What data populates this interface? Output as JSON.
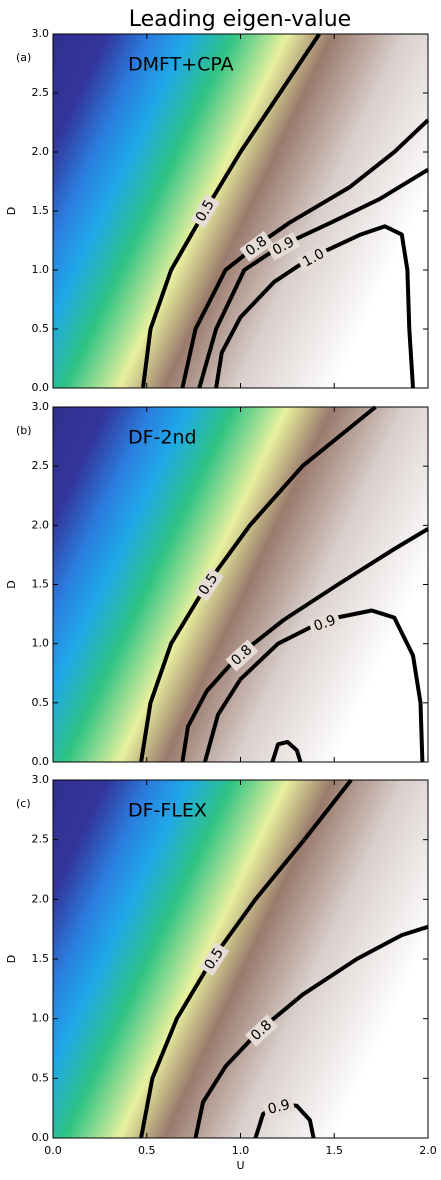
{
  "chart_data": [
    {
      "type": "contour",
      "suptitle": "Leading eigen-value",
      "panel": "(a)",
      "title": "DMFT+CPA",
      "ylabel": "D",
      "xlim": [
        0,
        2
      ],
      "ylim": [
        0,
        3
      ],
      "xticks": [
        {
          "value": 0,
          "label": "0.0"
        },
        0.5,
        {
          "value": 1,
          "label": "1.0"
        },
        1.5,
        {
          "value": 2,
          "label": "2.0"
        }
      ],
      "yticks": [
        {
          "value": 0,
          "label": "0.0"
        },
        0.5,
        {
          "value": 1,
          "label": "1.0"
        },
        1.5,
        {
          "value": 2,
          "label": "2.0"
        },
        2.5,
        {
          "value": 3,
          "label": "3.0"
        }
      ],
      "show_xtick_labels": false,
      "contours": [
        {
          "level": 0.5,
          "labeled": true,
          "x": [
            0.48,
            0.52,
            0.63,
            0.81,
            1.0,
            1.21,
            1.42
          ],
          "y": [
            0,
            0.5,
            1.0,
            1.5,
            2.0,
            2.5,
            3.0
          ]
        },
        {
          "level": 0.8,
          "labeled": true,
          "x": [
            0.69,
            0.76,
            0.92,
            1.08,
            1.26,
            1.58,
            1.82,
            2.0
          ],
          "y": [
            0,
            0.5,
            1.0,
            1.2,
            1.4,
            1.7,
            2.0,
            2.27
          ]
        },
        {
          "level": 0.9,
          "labeled": true,
          "x": [
            0.78,
            0.87,
            1.02,
            1.21,
            1.48,
            1.74,
            2.0
          ],
          "y": [
            0,
            0.5,
            1.0,
            1.2,
            1.4,
            1.6,
            1.85
          ]
        },
        {
          "level": {
            "value": 1,
            "label": "1.0"
          },
          "labeled": true,
          "x": [
            0.87,
            0.9,
            1.0,
            1.18,
            1.37,
            1.64,
            1.77,
            1.86,
            1.89,
            1.9,
            1.92
          ],
          "y": [
            0,
            0.3,
            0.6,
            0.9,
            1.1,
            1.3,
            1.37,
            1.3,
            1.0,
            0.5,
            0
          ]
        }
      ]
    },
    {
      "type": "contour",
      "panel": "(b)",
      "title": "DF-2nd",
      "ylabel": "D",
      "xlim": [
        0,
        2
      ],
      "ylim": [
        0,
        3
      ],
      "xticks": [
        {
          "value": 0,
          "label": "0.0"
        },
        0.5,
        {
          "value": 1,
          "label": "1.0"
        },
        1.5,
        {
          "value": 2,
          "label": "2.0"
        }
      ],
      "yticks": [
        {
          "value": 0,
          "label": "0.0"
        },
        0.5,
        {
          "value": 1,
          "label": "1.0"
        },
        1.5,
        {
          "value": 2,
          "label": "2.0"
        },
        2.5,
        {
          "value": 3,
          "label": "3.0"
        }
      ],
      "show_xtick_labels": false,
      "contours": [
        {
          "level": 0.5,
          "labeled": true,
          "x": [
            0.47,
            0.52,
            0.63,
            0.82,
            1.05,
            1.33,
            1.72
          ],
          "y": [
            0,
            0.5,
            1.0,
            1.5,
            2.0,
            2.5,
            3.0
          ]
        },
        {
          "level": 0.8,
          "labeled": true,
          "x": [
            0.69,
            0.72,
            0.82,
            0.99,
            1.23,
            1.52,
            1.82,
            2.0
          ],
          "y": [
            0,
            0.3,
            0.6,
            0.9,
            1.2,
            1.5,
            1.8,
            1.97
          ]
        },
        {
          "level": 0.9,
          "labeled": true,
          "x": [
            0.81,
            0.88,
            1.0,
            1.2,
            1.45,
            1.7,
            1.82,
            1.92,
            1.96,
            1.97
          ],
          "y": [
            0,
            0.4,
            0.7,
            1.0,
            1.2,
            1.28,
            1.22,
            0.9,
            0.5,
            0
          ]
        },
        {
          "level": 1,
          "labeled": false,
          "x": [
            1.17,
            1.2,
            1.25,
            1.3,
            1.32
          ],
          "y": [
            0,
            0.15,
            0.17,
            0.1,
            0
          ]
        }
      ]
    },
    {
      "type": "contour",
      "panel": "(c)",
      "title": "DF-FLEX",
      "ylabel": "D",
      "xlabel": "U",
      "xlim": [
        0,
        2
      ],
      "ylim": [
        0,
        3
      ],
      "xticks": [
        {
          "value": 0,
          "label": "0.0"
        },
        0.5,
        {
          "value": 1,
          "label": "1.0"
        },
        1.5,
        {
          "value": 2,
          "label": "2.0"
        }
      ],
      "yticks": [
        {
          "value": 0,
          "label": "0.0"
        },
        0.5,
        {
          "value": 1,
          "label": "1.0"
        },
        1.5,
        {
          "value": 2,
          "label": "2.0"
        },
        2.5,
        {
          "value": 3,
          "label": "3.0"
        }
      ],
      "show_xtick_labels": true,
      "contours": [
        {
          "level": 0.5,
          "labeled": true,
          "x": [
            0.47,
            0.53,
            0.66,
            0.85,
            1.08,
            1.34,
            1.59
          ],
          "y": [
            0,
            0.5,
            1.0,
            1.5,
            2.0,
            2.5,
            3.0
          ]
        },
        {
          "level": 0.8,
          "labeled": true,
          "x": [
            0.76,
            0.8,
            0.92,
            1.1,
            1.33,
            1.62,
            1.86,
            2.0
          ],
          "y": [
            0,
            0.3,
            0.6,
            0.9,
            1.2,
            1.5,
            1.7,
            1.77
          ]
        },
        {
          "level": 0.9,
          "labeled": true,
          "x": [
            1.08,
            1.12,
            1.2,
            1.3,
            1.37,
            1.39
          ],
          "y": [
            0,
            0.2,
            0.28,
            0.27,
            0.15,
            0
          ]
        }
      ]
    }
  ]
}
